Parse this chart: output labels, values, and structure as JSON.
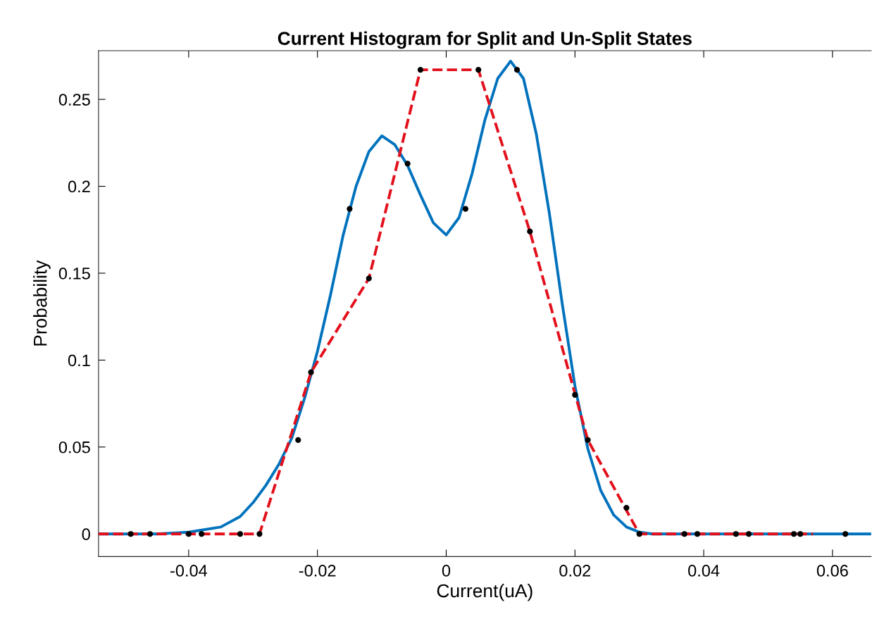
{
  "chart_data": {
    "type": "line",
    "title": "Current Histogram for Split and Un-Split States",
    "xlabel": "Current(uA)",
    "ylabel": "Probability",
    "xlim": [
      -0.054,
      0.066
    ],
    "ylim": [
      -0.013,
      0.278
    ],
    "xticks": [
      -0.04,
      -0.02,
      0,
      0.02,
      0.04,
      0.06
    ],
    "yticks": [
      0,
      0.05,
      0.1,
      0.15,
      0.2,
      0.25
    ],
    "grid": false,
    "series": [
      {
        "color": "#0072bd",
        "line_style": "solid",
        "x": [
          -0.054,
          -0.045,
          -0.04,
          -0.035,
          -0.032,
          -0.03,
          -0.028,
          -0.026,
          -0.024,
          -0.022,
          -0.02,
          -0.018,
          -0.016,
          -0.014,
          -0.012,
          -0.01,
          -0.008,
          -0.006,
          -0.004,
          -0.002,
          0,
          0.002,
          0.004,
          0.006,
          0.008,
          0.01,
          0.012,
          0.014,
          0.016,
          0.018,
          0.02,
          0.022,
          0.024,
          0.026,
          0.028,
          0.03,
          0.032,
          0.045,
          0.066
        ],
        "values": [
          0,
          0,
          0.001,
          0.004,
          0.01,
          0.018,
          0.028,
          0.04,
          0.055,
          0.078,
          0.105,
          0.137,
          0.172,
          0.2,
          0.22,
          0.229,
          0.224,
          0.212,
          0.195,
          0.179,
          0.172,
          0.182,
          0.207,
          0.238,
          0.262,
          0.272,
          0.262,
          0.23,
          0.185,
          0.133,
          0.085,
          0.049,
          0.025,
          0.011,
          0.004,
          0.001,
          0,
          0,
          0
        ]
      },
      {
        "color": "#e3101c",
        "line_style": "dashed",
        "x": [
          -0.054,
          -0.029,
          -0.021,
          -0.012,
          -0.004,
          0.005,
          0.013,
          0.022,
          0.03,
          0.057
        ],
        "values": [
          0,
          0,
          0.093,
          0.147,
          0.267,
          0.267,
          0.174,
          0.054,
          0,
          0
        ]
      },
      {
        "type": "scatter",
        "color": "#000000",
        "marker": "circle",
        "x": [
          -0.049,
          -0.046,
          -0.04,
          -0.038,
          -0.032,
          -0.029,
          -0.023,
          -0.021,
          -0.015,
          -0.012,
          -0.006,
          -0.004,
          0.003,
          0.005,
          0.011,
          0.013,
          0.02,
          0.022,
          0.028,
          0.03,
          0.037,
          0.039,
          0.045,
          0.047,
          0.054,
          0.055,
          0.062
        ],
        "values": [
          0,
          0,
          0,
          0,
          0,
          0,
          0.054,
          0.093,
          0.187,
          0.147,
          0.213,
          0.267,
          0.187,
          0.267,
          0.267,
          0.174,
          0.08,
          0.054,
          0.015,
          0,
          0,
          0,
          0,
          0,
          0,
          0,
          0
        ]
      }
    ]
  }
}
